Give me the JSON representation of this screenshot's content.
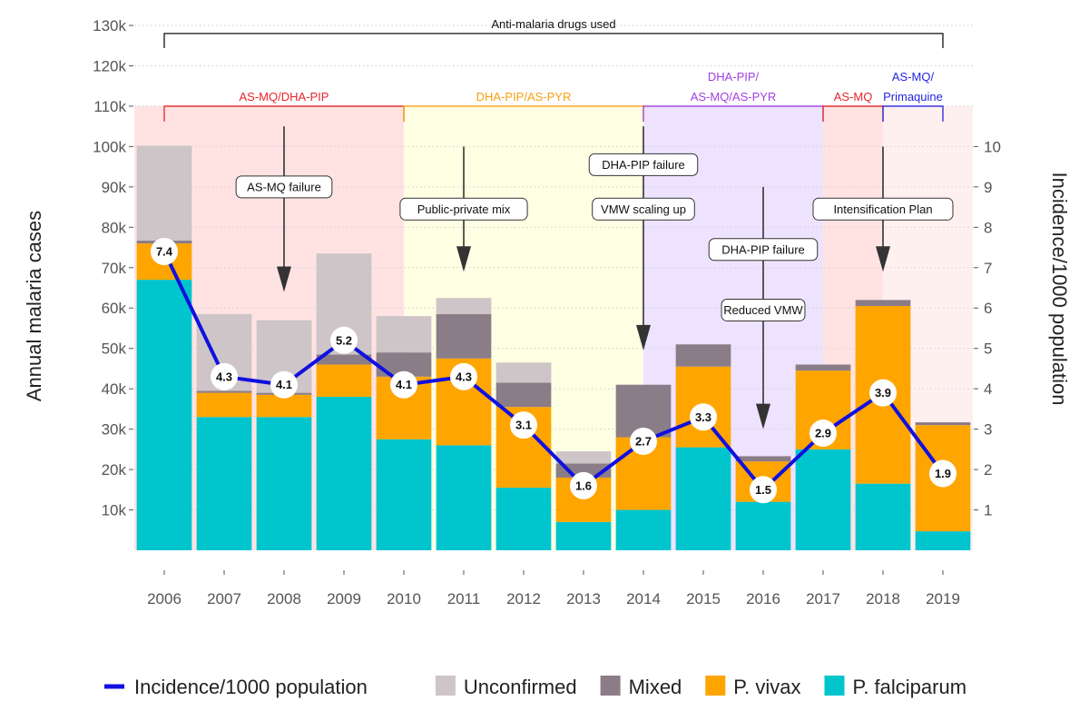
{
  "chart_data": {
    "type": "bar",
    "stacked": true,
    "categories": [
      "2006",
      "2007",
      "2008",
      "2009",
      "2010",
      "2011",
      "2012",
      "2013",
      "2014",
      "2015",
      "2016",
      "2017",
      "2018",
      "2019"
    ],
    "series": [
      {
        "name": "P. falciparum",
        "color": "#00c5cd",
        "values": [
          67000,
          33000,
          33000,
          38000,
          27500,
          26000,
          15500,
          7000,
          10000,
          25500,
          12000,
          25000,
          16500,
          4700
        ]
      },
      {
        "name": "P. vivax",
        "color": "#ffa500",
        "values": [
          9000,
          6000,
          5500,
          8000,
          15500,
          21500,
          20000,
          11000,
          18000,
          20000,
          10000,
          19500,
          44000,
          26300
        ]
      },
      {
        "name": "Mixed",
        "color": "#8b7d87",
        "values": [
          700,
          500,
          500,
          2500,
          6000,
          11000,
          6000,
          3500,
          13000,
          5500,
          1300,
          1500,
          1500,
          700
        ]
      },
      {
        "name": "Unconfirmed",
        "color": "#cdc5c8",
        "values": [
          23500,
          19000,
          18000,
          25000,
          9000,
          4000,
          5000,
          3000,
          0,
          0,
          0,
          0,
          0,
          0
        ]
      }
    ],
    "line_series": {
      "name": "Incidence/1000 population",
      "color": "#1010e0",
      "values": [
        7.4,
        4.3,
        4.1,
        5.2,
        4.1,
        4.3,
        3.1,
        1.6,
        2.7,
        3.3,
        1.5,
        2.9,
        3.9,
        1.9
      ],
      "labels": [
        "7.4",
        "4.3",
        "4.1",
        "5.2",
        "4.1",
        "4.3",
        "3.1",
        "1.6",
        "2.7",
        "3.3",
        "1.5",
        "2.9",
        "3.9",
        "1.9"
      ]
    },
    "ylim": [
      0,
      130000
    ],
    "y_ticks": [
      10000,
      20000,
      30000,
      40000,
      50000,
      60000,
      70000,
      80000,
      90000,
      100000,
      110000,
      120000,
      130000
    ],
    "y_tick_labels": [
      "10k",
      "20k",
      "30k",
      "40k",
      "50k",
      "60k",
      "70k",
      "80k",
      "90k",
      "100k",
      "110k",
      "120k",
      "130k"
    ],
    "ylabel": "Annual malaria cases",
    "y2lim": [
      0,
      13
    ],
    "y2_ticks": [
      1,
      2,
      3,
      4,
      5,
      6,
      7,
      8,
      9,
      10
    ],
    "y2_tick_labels": [
      "1",
      "2",
      "3",
      "4",
      "5",
      "6",
      "7",
      "8",
      "9",
      "10"
    ],
    "y2label": "Incidence/1000 population",
    "grid": true,
    "legend_position": "bottom",
    "legend": [
      {
        "label": "Incidence/1000 population",
        "kind": "line",
        "color": "#1010e0"
      },
      {
        "label": "Unconfirmed",
        "kind": "box",
        "color": "#cdc5c8"
      },
      {
        "label": "Mixed",
        "kind": "box",
        "color": "#8b7d87"
      },
      {
        "label": "P. vivax",
        "kind": "box",
        "color": "#ffa500"
      },
      {
        "label": "P. falciparum",
        "kind": "box",
        "color": "#00c5cd"
      }
    ],
    "drug_bracket": {
      "label": "Anti-malaria drugs used",
      "from_year": "2006",
      "to_year": "2019",
      "level": 128000
    },
    "drug_periods": [
      {
        "label_lines": [
          "AS-MQ/DHA-PIP"
        ],
        "from_year": "2006",
        "to_year": "2010",
        "shade": "#ffe3e3",
        "color": "#e8252a"
      },
      {
        "label_lines": [
          "DHA-PIP/AS-PYR"
        ],
        "from_year": "2010",
        "to_year": "2014",
        "shade": "#ffffe3",
        "color": "#f5a10f"
      },
      {
        "label_lines": [
          "DHA-PIP/",
          "AS-MQ/AS-PYR"
        ],
        "from_year": "2014",
        "to_year": "2017",
        "shade": "#eee3ff",
        "color": "#a03fe0"
      },
      {
        "label_lines": [
          "AS-MQ"
        ],
        "from_year": "2017",
        "to_year": "2018",
        "shade": "#ffe3e3",
        "color": "#e8252a"
      },
      {
        "label_lines": [
          "AS-MQ/",
          "Primaquine"
        ],
        "from_year": "2018",
        "to_year": "2019",
        "shade": "#fff0f0",
        "color": "#2424e0"
      }
    ],
    "event_arrows": [
      {
        "year": "2008",
        "from": 105000,
        "to": 64000,
        "labels": [
          {
            "text": "AS-MQ failure",
            "at": 90000
          }
        ]
      },
      {
        "year": "2011",
        "from": 100000,
        "to": 69000,
        "labels": [
          {
            "text": "Public-private mix",
            "at": 84500
          }
        ]
      },
      {
        "year": "2014",
        "from": 105000,
        "to": 49500,
        "labels": [
          {
            "text": "DHA-PIP failure",
            "at": 95500
          },
          {
            "text": "VMW scaling up",
            "at": 84500
          }
        ]
      },
      {
        "year": "2016",
        "from": 90000,
        "to": 30000,
        "labels": [
          {
            "text": "DHA-PIP failure",
            "at": 74500
          },
          {
            "text": "Reduced VMW",
            "at": 59500
          }
        ]
      },
      {
        "year": "2018",
        "from": 100000,
        "to": 69000,
        "labels": [
          {
            "text": "Intensification Plan",
            "at": 84500
          }
        ]
      }
    ]
  }
}
